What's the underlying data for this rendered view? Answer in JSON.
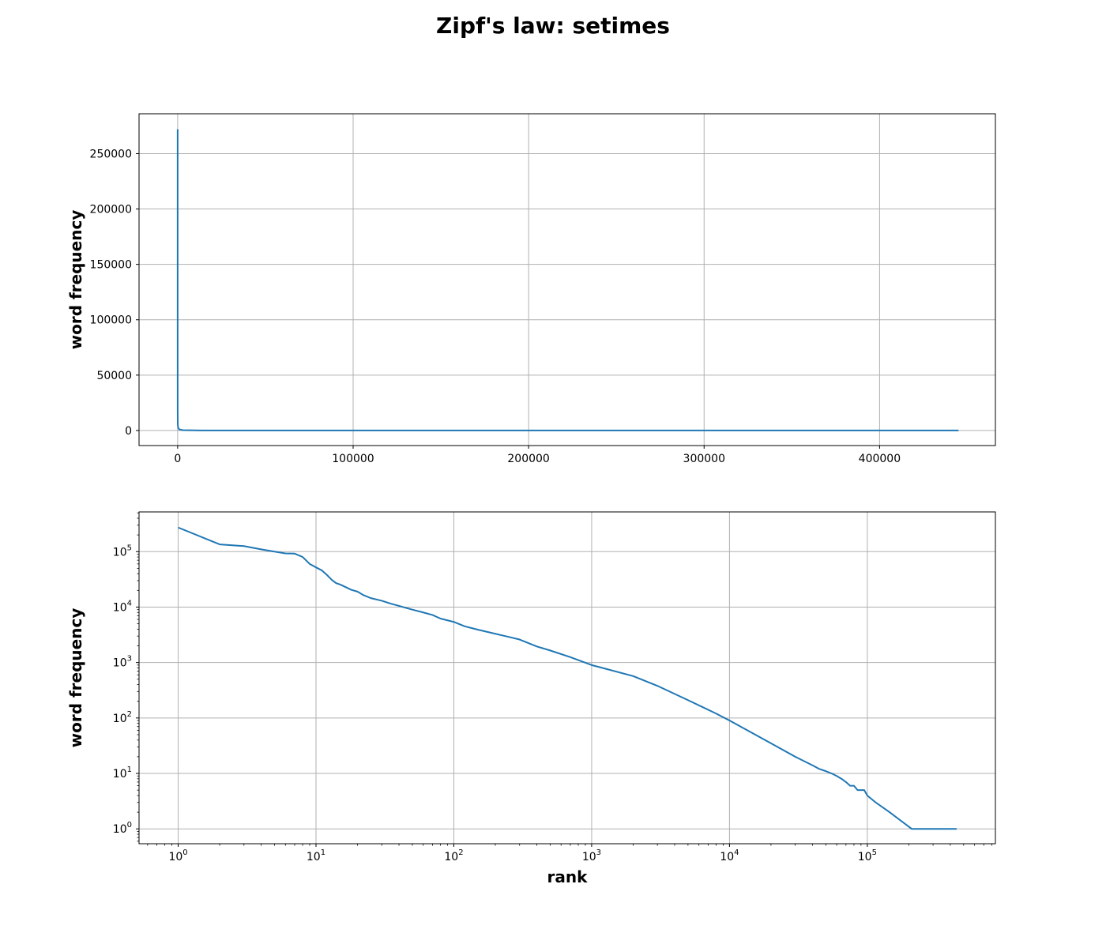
{
  "figure": {
    "title": "Zipf's law: setimes"
  },
  "colors": {
    "line": "#1f77b4",
    "grid": "#b0b0b0",
    "axes": "#000000"
  },
  "chart_data": [
    {
      "type": "line",
      "title": "",
      "xlabel": "",
      "ylabel": "word frequency",
      "xscale": "linear",
      "yscale": "linear",
      "xlim": [
        -22000,
        466000
      ],
      "ylim": [
        -13600,
        286000
      ],
      "xticks": [
        0,
        100000,
        200000,
        300000,
        400000
      ],
      "xtick_labels": [
        "0",
        "100000",
        "200000",
        "300000",
        "400000"
      ],
      "yticks": [
        0,
        50000,
        100000,
        150000,
        200000,
        250000
      ],
      "ytick_labels": [
        "0",
        "50000",
        "100000",
        "150000",
        "200000",
        "250000"
      ],
      "grid": true,
      "series": [
        {
          "x": [
            1,
            2,
            3,
            5,
            7,
            10,
            20,
            50,
            100,
            300,
            1000,
            3000,
            10000,
            50000,
            100000,
            200000,
            300000,
            400000,
            445000
          ],
          "y": [
            272000,
            135000,
            126000,
            100000,
            92000,
            48000,
            20000,
            9000,
            5200,
            2500,
            900,
            330,
            90,
            10,
            4,
            2,
            1,
            1,
            1
          ]
        }
      ]
    },
    {
      "type": "line",
      "title": "",
      "xlabel": "rank",
      "ylabel": "word frequency",
      "xscale": "log",
      "yscale": "log",
      "xlim": [
        0.52,
        850000
      ],
      "ylim": [
        0.54,
        520000
      ],
      "xticks": [
        1,
        10,
        100,
        1000,
        10000,
        100000
      ],
      "xtick_labels": [
        {
          "base": "10",
          "exp": "0"
        },
        {
          "base": "10",
          "exp": "1"
        },
        {
          "base": "10",
          "exp": "2"
        },
        {
          "base": "10",
          "exp": "3"
        },
        {
          "base": "10",
          "exp": "4"
        },
        {
          "base": "10",
          "exp": "5"
        }
      ],
      "yticks": [
        1,
        10,
        100,
        1000,
        10000,
        100000
      ],
      "ytick_labels": [
        {
          "base": "10",
          "exp": "0"
        },
        {
          "base": "10",
          "exp": "1"
        },
        {
          "base": "10",
          "exp": "2"
        },
        {
          "base": "10",
          "exp": "3"
        },
        {
          "base": "10",
          "exp": "4"
        },
        {
          "base": "10",
          "exp": "5"
        }
      ],
      "grid": true,
      "series": [
        {
          "x": [
            1,
            2,
            3,
            4,
            5,
            6,
            7,
            8,
            9,
            10,
            11,
            12,
            13,
            14,
            15,
            17,
            18,
            20,
            22,
            25,
            30,
            35,
            40,
            50,
            60,
            70,
            80,
            100,
            120,
            150,
            200,
            250,
            300,
            400,
            500,
            700,
            1000,
            2000,
            3000,
            5000,
            8000,
            10000,
            20000,
            30000,
            40000,
            45000,
            50000,
            55000,
            60000,
            65000,
            70000,
            75000,
            80000,
            85000,
            95000,
            100000,
            115000,
            145000,
            210000,
            445000
          ],
          "y": [
            272000,
            135000,
            126000,
            110000,
            100000,
            93000,
            92000,
            80000,
            60000,
            52000,
            46000,
            38000,
            31000,
            27000,
            25500,
            22000,
            20500,
            19000,
            16500,
            14500,
            13000,
            11500,
            10500,
            9000,
            8000,
            7200,
            6200,
            5400,
            4500,
            3900,
            3300,
            2900,
            2600,
            1950,
            1650,
            1250,
            900,
            570,
            380,
            210,
            120,
            90,
            35,
            20,
            14,
            12,
            11,
            10,
            9,
            8,
            7,
            6,
            6,
            5,
            5,
            4,
            3,
            2,
            1,
            1
          ]
        }
      ]
    }
  ]
}
